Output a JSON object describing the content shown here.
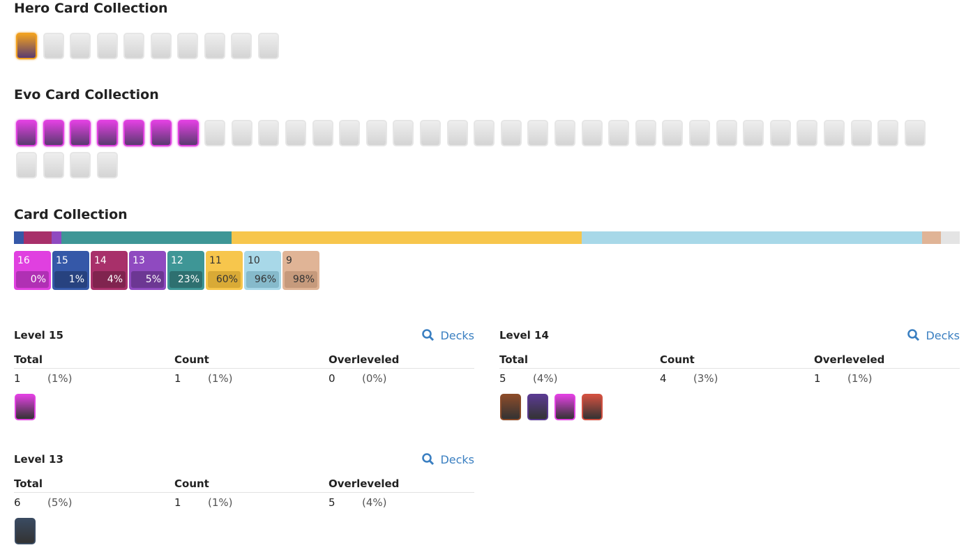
{
  "hero": {
    "title": "Hero Card Collection"
  },
  "evo": {
    "title": "Evo Card Collection"
  },
  "collection": {
    "title": "Card Collection",
    "levels": [
      {
        "level": 16,
        "percent": 0,
        "percent_label": "0%",
        "color": "#e040e0",
        "dark": "#b030b4",
        "text": "#ffffff"
      },
      {
        "level": 15,
        "percent": 1,
        "percent_label": "1%",
        "color": "#3558a8",
        "dark": "#27427f",
        "text": "#ffffff"
      },
      {
        "level": 14,
        "percent": 4,
        "percent_label": "4%",
        "color": "#a8306a",
        "dark": "#80244f",
        "text": "#ffffff"
      },
      {
        "level": 13,
        "percent": 5,
        "percent_label": "5%",
        "color": "#8f4ac0",
        "dark": "#6c3793",
        "text": "#ffffff"
      },
      {
        "level": 12,
        "percent": 23,
        "percent_label": "23%",
        "color": "#3e9696",
        "dark": "#2e7070",
        "text": "#ffffff"
      },
      {
        "level": 11,
        "percent": 60,
        "percent_label": "60%",
        "color": "#f7c64c",
        "dark": "#d9aa36",
        "text": "#333333"
      },
      {
        "level": 10,
        "percent": 96,
        "percent_label": "96%",
        "color": "#a8d8e8",
        "dark": "#86bacb",
        "text": "#333333"
      },
      {
        "level": 9,
        "percent": 98,
        "percent_label": "98%",
        "color": "#e0b496",
        "dark": "#c69a7c",
        "text": "#333333"
      }
    ]
  },
  "tables": [
    {
      "title": "Level 15",
      "link": "Decks",
      "headers": [
        "Total",
        "Count",
        "Overleveled"
      ],
      "cells": [
        [
          "1",
          "(1%)"
        ],
        [
          "1",
          "(1%)"
        ],
        [
          "0",
          "(0%)"
        ]
      ]
    },
    {
      "title": "Level 14",
      "link": "Decks",
      "headers": [
        "Total",
        "Count",
        "Overleveled"
      ],
      "cells": [
        [
          "5",
          "(4%)"
        ],
        [
          "4",
          "(3%)"
        ],
        [
          "1",
          "(1%)"
        ]
      ]
    },
    {
      "title": "Level 13",
      "link": "Decks",
      "headers": [
        "Total",
        "Count",
        "Overleveled"
      ],
      "cells": [
        [
          "6",
          "(5%)"
        ],
        [
          "1",
          "(1%)"
        ],
        [
          "5",
          "(4%)"
        ]
      ]
    }
  ]
}
